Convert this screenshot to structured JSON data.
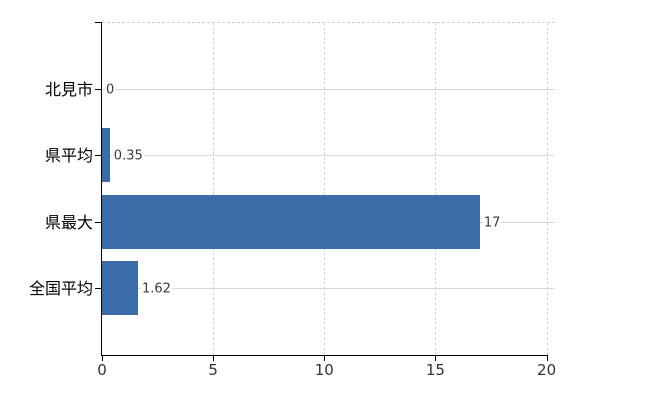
{
  "chart_data": {
    "type": "bar",
    "orientation": "horizontal",
    "title": "",
    "xlabel": "",
    "ylabel": "",
    "categories": [
      "北見市",
      "県平均",
      "県最大",
      "全国平均"
    ],
    "values": [
      0,
      0.35,
      17,
      1.62
    ],
    "value_labels": [
      "0",
      "0.35",
      "17",
      "1.62"
    ],
    "x_tick_labels": [
      "0",
      "5",
      "10",
      "15",
      "20"
    ],
    "x_tick_values": [
      0,
      5,
      10,
      15,
      20
    ],
    "xlim": [
      0,
      20.4
    ],
    "legend_position": "none",
    "grid": {
      "horizontal_lines": "solid, one per category",
      "vertical_lines": "dashed, at ticks 5 10 15 20",
      "top_border": "dashed"
    }
  },
  "colors": {
    "bar": "#3c6ca7",
    "grid_solid": "#d9d9d9",
    "grid_dashed": "#d3d3d3",
    "axis": "#000000",
    "category_text": "#000000",
    "value_text": "#3a3a3a",
    "tick_text": "#333333",
    "background": "#ffffff"
  }
}
